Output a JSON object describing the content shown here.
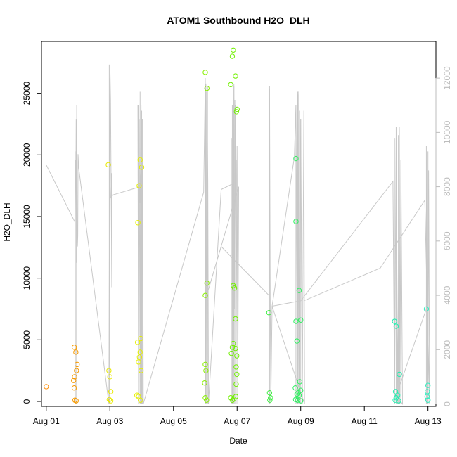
{
  "chart_data": {
    "type": "scatter",
    "title": "ATOM1 Southbound H2O_DLH",
    "xlabel": "Date",
    "ylabel": "H2O_DLH",
    "x_ticks": [
      "Aug 01",
      "Aug 03",
      "Aug 05",
      "Aug 07",
      "Aug 09",
      "Aug 11",
      "Aug 13"
    ],
    "xlim": [
      -0.15,
      12.25
    ],
    "y_left": {
      "ticks": [
        0,
        5000,
        10000,
        15000,
        20000,
        25000
      ],
      "lim": [
        -400,
        29200
      ]
    },
    "y_right": {
      "ticks": [
        0,
        2000,
        4000,
        6000,
        8000,
        10000,
        12000
      ],
      "lim": [
        -90,
        13350
      ],
      "color": "#bdbdbd"
    },
    "grid": false,
    "points": [
      {
        "x": 0.0,
        "y": 1200,
        "color": "#ff8c00"
      },
      {
        "x": 0.88,
        "y": 4400,
        "color": "#f79a00"
      },
      {
        "x": 0.93,
        "y": 4000,
        "color": "#f79a00"
      },
      {
        "x": 0.97,
        "y": 3000,
        "color": "#f79a00"
      },
      {
        "x": 0.95,
        "y": 2500,
        "color": "#f79a00"
      },
      {
        "x": 0.89,
        "y": 2000,
        "color": "#f79a00"
      },
      {
        "x": 0.86,
        "y": 1700,
        "color": "#f79a00"
      },
      {
        "x": 0.88,
        "y": 1100,
        "color": "#f79a00"
      },
      {
        "x": 0.9,
        "y": 100,
        "color": "#f79a00"
      },
      {
        "x": 0.94,
        "y": 50,
        "color": "#f79a00"
      },
      {
        "x": 1.95,
        "y": 19200,
        "color": "#e8e800"
      },
      {
        "x": 1.97,
        "y": 2500,
        "color": "#e8e800"
      },
      {
        "x": 2.0,
        "y": 2000,
        "color": "#e8e800"
      },
      {
        "x": 2.03,
        "y": 800,
        "color": "#e8e800"
      },
      {
        "x": 1.98,
        "y": 150,
        "color": "#e8e800"
      },
      {
        "x": 2.03,
        "y": 50,
        "color": "#e8e800"
      },
      {
        "x": 2.95,
        "y": 19600,
        "color": "#e6f000"
      },
      {
        "x": 3.0,
        "y": 19000,
        "color": "#e6f000"
      },
      {
        "x": 2.92,
        "y": 17500,
        "color": "#e6f000"
      },
      {
        "x": 2.88,
        "y": 14500,
        "color": "#e6f000"
      },
      {
        "x": 2.97,
        "y": 5100,
        "color": "#e6f000"
      },
      {
        "x": 2.87,
        "y": 4800,
        "color": "#e6f000"
      },
      {
        "x": 2.95,
        "y": 4000,
        "color": "#e6f000"
      },
      {
        "x": 2.93,
        "y": 3600,
        "color": "#e6f000"
      },
      {
        "x": 2.9,
        "y": 3200,
        "color": "#e6f000"
      },
      {
        "x": 2.98,
        "y": 2500,
        "color": "#e6f000"
      },
      {
        "x": 2.85,
        "y": 500,
        "color": "#e6f000"
      },
      {
        "x": 2.9,
        "y": 400,
        "color": "#e6f000"
      },
      {
        "x": 2.96,
        "y": 100,
        "color": "#e6f000"
      },
      {
        "x": 5.0,
        "y": 26700,
        "color": "#88f000"
      },
      {
        "x": 5.05,
        "y": 25400,
        "color": "#88f000"
      },
      {
        "x": 5.05,
        "y": 9600,
        "color": "#88f000"
      },
      {
        "x": 5.0,
        "y": 8600,
        "color": "#88f000"
      },
      {
        "x": 5.0,
        "y": 3000,
        "color": "#88f000"
      },
      {
        "x": 5.02,
        "y": 2500,
        "color": "#88f000"
      },
      {
        "x": 4.98,
        "y": 1500,
        "color": "#88f000"
      },
      {
        "x": 5.0,
        "y": 300,
        "color": "#88f000"
      },
      {
        "x": 5.04,
        "y": 100,
        "color": "#88f000"
      },
      {
        "x": 5.88,
        "y": 28500,
        "color": "#70f000"
      },
      {
        "x": 5.85,
        "y": 28000,
        "color": "#70f000"
      },
      {
        "x": 5.95,
        "y": 26400,
        "color": "#70f000"
      },
      {
        "x": 5.8,
        "y": 25700,
        "color": "#70f000"
      },
      {
        "x": 6.0,
        "y": 23700,
        "color": "#70f000"
      },
      {
        "x": 5.98,
        "y": 23500,
        "color": "#70f000"
      },
      {
        "x": 5.88,
        "y": 9400,
        "color": "#70f000"
      },
      {
        "x": 5.92,
        "y": 9200,
        "color": "#70f000"
      },
      {
        "x": 5.95,
        "y": 6700,
        "color": "#70f000"
      },
      {
        "x": 5.88,
        "y": 4700,
        "color": "#70f000"
      },
      {
        "x": 5.85,
        "y": 4400,
        "color": "#70f000"
      },
      {
        "x": 5.95,
        "y": 4300,
        "color": "#70f000"
      },
      {
        "x": 5.82,
        "y": 3900,
        "color": "#70f000"
      },
      {
        "x": 5.99,
        "y": 3700,
        "color": "#70f000"
      },
      {
        "x": 5.97,
        "y": 2800,
        "color": "#70f000"
      },
      {
        "x": 5.99,
        "y": 2200,
        "color": "#70f000"
      },
      {
        "x": 5.97,
        "y": 1400,
        "color": "#70f000"
      },
      {
        "x": 5.8,
        "y": 300,
        "color": "#70f000"
      },
      {
        "x": 5.9,
        "y": 200,
        "color": "#70f000"
      },
      {
        "x": 5.96,
        "y": 400,
        "color": "#70f000"
      },
      {
        "x": 5.85,
        "y": 100,
        "color": "#70f000"
      },
      {
        "x": 7.0,
        "y": 7200,
        "color": "#3cf040"
      },
      {
        "x": 7.02,
        "y": 700,
        "color": "#3cf040"
      },
      {
        "x": 7.05,
        "y": 300,
        "color": "#3cf040"
      },
      {
        "x": 7.03,
        "y": 100,
        "color": "#3cf040"
      },
      {
        "x": 7.85,
        "y": 19700,
        "color": "#2ef060"
      },
      {
        "x": 7.85,
        "y": 14600,
        "color": "#2ef060"
      },
      {
        "x": 7.95,
        "y": 9000,
        "color": "#2ef060"
      },
      {
        "x": 8.0,
        "y": 6600,
        "color": "#2ef060"
      },
      {
        "x": 7.85,
        "y": 6500,
        "color": "#2ef060"
      },
      {
        "x": 7.88,
        "y": 4900,
        "color": "#2ef060"
      },
      {
        "x": 7.97,
        "y": 1600,
        "color": "#2ef060"
      },
      {
        "x": 7.83,
        "y": 1100,
        "color": "#2ef060"
      },
      {
        "x": 8.0,
        "y": 900,
        "color": "#2ef060"
      },
      {
        "x": 7.92,
        "y": 700,
        "color": "#2ef060"
      },
      {
        "x": 7.88,
        "y": 600,
        "color": "#2ef060"
      },
      {
        "x": 7.95,
        "y": 500,
        "color": "#2ef060"
      },
      {
        "x": 7.84,
        "y": 150,
        "color": "#2ef060"
      },
      {
        "x": 7.9,
        "y": 100,
        "color": "#2ef060"
      },
      {
        "x": 8.0,
        "y": 50,
        "color": "#2ef060"
      },
      {
        "x": 10.95,
        "y": 6500,
        "color": "#20f0b0"
      },
      {
        "x": 11.0,
        "y": 6100,
        "color": "#20f0b0"
      },
      {
        "x": 11.1,
        "y": 2200,
        "color": "#20f0b0"
      },
      {
        "x": 10.98,
        "y": 800,
        "color": "#20f0b0"
      },
      {
        "x": 11.05,
        "y": 500,
        "color": "#20f0b0"
      },
      {
        "x": 11.0,
        "y": 300,
        "color": "#20f0b0"
      },
      {
        "x": 10.97,
        "y": 100,
        "color": "#20f0b0"
      },
      {
        "x": 11.08,
        "y": 50,
        "color": "#20f0b0"
      },
      {
        "x": 11.95,
        "y": 7500,
        "color": "#30f0c0"
      },
      {
        "x": 12.0,
        "y": 1300,
        "color": "#30f0c0"
      },
      {
        "x": 11.98,
        "y": 800,
        "color": "#30f0c0"
      },
      {
        "x": 11.97,
        "y": 400,
        "color": "#30f0c0"
      },
      {
        "x": 12.0,
        "y": 100,
        "color": "#30f0c0"
      }
    ],
    "line_series": {
      "axis": "right",
      "color": "#c8c8c8",
      "points": [
        [
          0.0,
          8800
        ],
        [
          0.9,
          6700
        ],
        [
          0.92,
          9000
        ],
        [
          0.93,
          8000
        ],
        [
          0.94,
          10500
        ],
        [
          0.95,
          5200
        ],
        [
          0.96,
          11000
        ],
        [
          0.97,
          6000
        ],
        [
          0.98,
          5800
        ],
        [
          0.99,
          6200
        ],
        [
          1.0,
          9200
        ],
        [
          1.02,
          8700
        ],
        [
          1.97,
          0
        ],
        [
          2.0,
          12500
        ],
        [
          2.02,
          11200
        ],
        [
          2.06,
          4300
        ],
        [
          2.05,
          8500
        ],
        [
          2.03,
          7600
        ],
        [
          2.1,
          7700
        ],
        [
          2.95,
          8000
        ],
        [
          3.0,
          9200
        ],
        [
          2.95,
          7400
        ],
        [
          2.9,
          9000
        ],
        [
          2.88,
          11000
        ],
        [
          2.9,
          0
        ],
        [
          2.92,
          10500
        ],
        [
          2.95,
          0
        ],
        [
          2.98,
          11000
        ],
        [
          3.0,
          0
        ],
        [
          3.03,
          9000
        ],
        [
          3.05,
          0
        ],
        [
          4.95,
          7800
        ],
        [
          5.0,
          12000
        ],
        [
          5.02,
          0
        ],
        [
          5.05,
          11500
        ],
        [
          5.08,
          8200
        ],
        [
          5.1,
          0
        ],
        [
          5.5,
          7900
        ],
        [
          5.85,
          8100
        ],
        [
          5.88,
          1000
        ],
        [
          5.9,
          11800
        ],
        [
          5.92,
          3500
        ],
        [
          5.95,
          11000
        ],
        [
          5.97,
          2000
        ],
        [
          6.0,
          9500
        ],
        [
          6.02,
          0
        ],
        [
          6.05,
          8000
        ],
        [
          5.02,
          3900
        ],
        [
          5.5,
          5800
        ],
        [
          7.0,
          4000
        ],
        [
          7.02,
          11700
        ],
        [
          7.04,
          3800
        ],
        [
          7.06,
          0
        ],
        [
          7.1,
          3600
        ],
        [
          7.8,
          9100
        ],
        [
          7.85,
          11000
        ],
        [
          7.9,
          1000
        ],
        [
          7.92,
          11500
        ],
        [
          7.95,
          500
        ],
        [
          8.0,
          10500
        ],
        [
          8.05,
          0
        ],
        [
          8.1,
          10800
        ],
        [
          8.12,
          0
        ],
        [
          7.1,
          3600
        ],
        [
          8.0,
          3800
        ],
        [
          10.9,
          8200
        ],
        [
          10.95,
          0
        ],
        [
          11.0,
          9800
        ],
        [
          11.05,
          0
        ],
        [
          11.1,
          10200
        ],
        [
          11.12,
          0
        ],
        [
          11.15,
          9000
        ],
        [
          11.2,
          0
        ],
        [
          11.0,
          300
        ],
        [
          11.95,
          3500
        ],
        [
          11.97,
          9000
        ],
        [
          12.0,
          0
        ],
        [
          12.02,
          8600
        ],
        [
          12.05,
          0
        ],
        [
          11.9,
          7500
        ],
        [
          10.5,
          5000
        ],
        [
          8.1,
          3800
        ]
      ]
    },
    "line_spikes": [
      [
        0.9,
        6700
      ],
      [
        0.93,
        9300
      ],
      [
        0.96,
        11000
      ],
      [
        1.98,
        12500
      ],
      [
        2.0,
        12000
      ],
      [
        2.9,
        11000
      ],
      [
        2.95,
        11500
      ],
      [
        3.0,
        10800
      ],
      [
        3.02,
        10500
      ],
      [
        5.0,
        12000
      ],
      [
        5.02,
        11800
      ],
      [
        5.05,
        11500
      ],
      [
        5.07,
        11700
      ],
      [
        5.82,
        9800
      ],
      [
        5.85,
        11000
      ],
      [
        5.9,
        11700
      ],
      [
        5.93,
        11200
      ],
      [
        5.97,
        9000
      ],
      [
        7.0,
        11700
      ],
      [
        7.02,
        11600
      ],
      [
        7.85,
        11000
      ],
      [
        7.9,
        11500
      ],
      [
        7.92,
        11400
      ],
      [
        7.96,
        10800
      ],
      [
        8.0,
        10500
      ],
      [
        10.95,
        9800
      ],
      [
        11.0,
        10200
      ],
      [
        11.02,
        10100
      ],
      [
        11.07,
        9900
      ],
      [
        11.1,
        10000
      ],
      [
        11.95,
        9500
      ],
      [
        12.0,
        9300
      ]
    ]
  }
}
